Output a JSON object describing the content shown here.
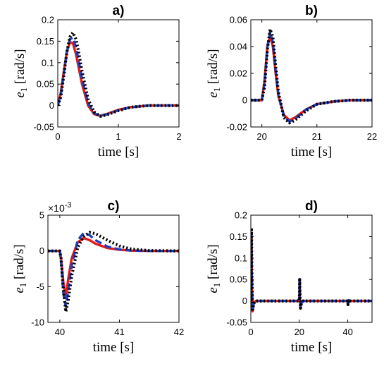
{
  "chart_data": [
    {
      "id": "a",
      "type": "line",
      "title": "a)",
      "xlabel": "time [s]",
      "ylabel": "e1 [rad/s]",
      "xlim": [
        0,
        2
      ],
      "ylim": [
        -0.05,
        0.2
      ],
      "xticks": [
        0,
        1,
        2
      ],
      "yticks": [
        -0.05,
        0,
        0.05,
        0.1,
        0.15,
        0.2
      ],
      "ytick_labels": [
        "-0.05",
        "0",
        "0.05",
        "0.1",
        "0.15",
        "0.2"
      ],
      "exponent": "",
      "series": [
        {
          "color": "#e41a1c",
          "dash": "solid",
          "x": [
            0,
            0.05,
            0.1,
            0.15,
            0.2,
            0.25,
            0.3,
            0.35,
            0.4,
            0.5,
            0.6,
            0.7,
            0.8,
            1.0,
            1.2,
            1.5,
            2.0
          ],
          "y": [
            0,
            0.03,
            0.08,
            0.125,
            0.148,
            0.145,
            0.12,
            0.085,
            0.05,
            0.0,
            -0.02,
            -0.024,
            -0.02,
            -0.01,
            -0.004,
            0.0,
            0.0
          ]
        },
        {
          "color": "#1f3fbf",
          "dash": "dash",
          "x": [
            0,
            0.05,
            0.1,
            0.15,
            0.2,
            0.25,
            0.3,
            0.35,
            0.4,
            0.5,
            0.6,
            0.7,
            0.8,
            1.0,
            1.2,
            1.5,
            2.0
          ],
          "y": [
            0,
            0.025,
            0.075,
            0.125,
            0.155,
            0.158,
            0.135,
            0.1,
            0.062,
            0.005,
            -0.018,
            -0.024,
            -0.021,
            -0.011,
            -0.004,
            0.0,
            0.0
          ]
        },
        {
          "color": "#000000",
          "dash": "dot",
          "x": [
            0,
            0.05,
            0.1,
            0.15,
            0.2,
            0.25,
            0.3,
            0.35,
            0.4,
            0.5,
            0.6,
            0.7,
            0.8,
            1.0,
            1.2,
            1.5,
            2.0
          ],
          "y": [
            0,
            0.02,
            0.07,
            0.125,
            0.16,
            0.17,
            0.155,
            0.12,
            0.08,
            0.015,
            -0.015,
            -0.025,
            -0.022,
            -0.012,
            -0.004,
            0.0,
            0.0
          ]
        }
      ]
    },
    {
      "id": "b",
      "type": "line",
      "title": "b)",
      "xlabel": "time [s]",
      "ylabel": "e1 [rad/s]",
      "xlim": [
        19.8,
        22
      ],
      "ylim": [
        -0.02,
        0.06
      ],
      "xticks": [
        20,
        21,
        22
      ],
      "yticks": [
        -0.02,
        0,
        0.02,
        0.04,
        0.06
      ],
      "ytick_labels": [
        "-0.02",
        "0",
        "0.02",
        "0.04",
        "0.06"
      ],
      "exponent": "",
      "series": [
        {
          "color": "#e41a1c",
          "dash": "solid",
          "x": [
            19.8,
            20.0,
            20.05,
            20.1,
            20.15,
            20.2,
            20.25,
            20.3,
            20.4,
            20.5,
            20.6,
            20.8,
            21.0,
            21.3,
            21.6,
            22.0
          ],
          "y": [
            0,
            0,
            0.015,
            0.04,
            0.048,
            0.04,
            0.02,
            0.003,
            -0.011,
            -0.015,
            -0.013,
            -0.007,
            -0.003,
            -0.001,
            0,
            0
          ]
        },
        {
          "color": "#1f3fbf",
          "dash": "dash",
          "x": [
            19.8,
            20.0,
            20.05,
            20.1,
            20.15,
            20.2,
            20.25,
            20.3,
            20.4,
            20.5,
            20.6,
            20.8,
            21.0,
            21.3,
            21.6,
            22.0
          ],
          "y": [
            0,
            0,
            0.013,
            0.04,
            0.051,
            0.043,
            0.022,
            0.004,
            -0.012,
            -0.016,
            -0.014,
            -0.007,
            -0.003,
            -0.001,
            0,
            0
          ]
        },
        {
          "color": "#000000",
          "dash": "dot",
          "x": [
            19.8,
            20.0,
            20.05,
            20.1,
            20.15,
            20.2,
            20.25,
            20.3,
            20.4,
            20.5,
            20.6,
            20.8,
            21.0,
            21.3,
            21.6,
            22.0
          ],
          "y": [
            0,
            0,
            0.01,
            0.038,
            0.053,
            0.047,
            0.026,
            0.006,
            -0.013,
            -0.017,
            -0.015,
            -0.008,
            -0.003,
            -0.001,
            0,
            0
          ]
        }
      ]
    },
    {
      "id": "c",
      "type": "line",
      "title": "c)",
      "xlabel": "time [s]",
      "ylabel": "e1 [rad/s]",
      "xlim": [
        39.8,
        42
      ],
      "ylim": [
        -10,
        5
      ],
      "xticks": [
        40,
        41,
        42
      ],
      "yticks": [
        -10,
        -5,
        0,
        5
      ],
      "ytick_labels": [
        "-10",
        "-5",
        "0",
        "5"
      ],
      "exponent": "×10",
      "exponent_power": "-3",
      "series": [
        {
          "color": "#e41a1c",
          "dash": "solid",
          "x": [
            39.8,
            40.0,
            40.02,
            40.06,
            40.1,
            40.14,
            40.2,
            40.3,
            40.4,
            40.5,
            40.6,
            40.8,
            41.0,
            41.2,
            41.5,
            42.0
          ],
          "y": [
            0,
            0,
            -1.0,
            -4.5,
            -6.5,
            -4.0,
            -1.0,
            1.2,
            1.8,
            1.5,
            1.0,
            0.4,
            0.15,
            0.05,
            0,
            0
          ]
        },
        {
          "color": "#1f3fbf",
          "dash": "dash",
          "x": [
            39.8,
            40.0,
            40.02,
            40.06,
            40.1,
            40.14,
            40.2,
            40.3,
            40.4,
            40.5,
            40.6,
            40.8,
            41.0,
            41.2,
            41.5,
            42.0
          ],
          "y": [
            0,
            0,
            -1.5,
            -6.0,
            -7.8,
            -5.5,
            -2.0,
            1.5,
            2.5,
            2.2,
            1.5,
            0.6,
            0.2,
            0.05,
            0,
            0
          ]
        },
        {
          "color": "#000000",
          "dash": "dot",
          "x": [
            39.8,
            40.0,
            40.02,
            40.06,
            40.1,
            40.14,
            40.2,
            40.3,
            40.4,
            40.5,
            40.6,
            40.8,
            41.0,
            41.2,
            41.5,
            42.0
          ],
          "y": [
            0,
            0,
            -1.0,
            -5.5,
            -8.5,
            -7.0,
            -3.5,
            0.5,
            2.0,
            2.6,
            2.4,
            1.5,
            0.7,
            0.25,
            0.05,
            0
          ]
        }
      ]
    },
    {
      "id": "d",
      "type": "line",
      "title": "d)",
      "xlabel": "time [s]",
      "ylabel": "e1 [rad/s]",
      "xlim": [
        0,
        50
      ],
      "ylim": [
        -0.05,
        0.2
      ],
      "xticks": [
        0,
        20,
        40
      ],
      "yticks": [
        -0.05,
        0,
        0.05,
        0.1,
        0.15,
        0.2
      ],
      "ytick_labels": [
        "-0.05",
        "0",
        "0.05",
        "0.1",
        "0.15",
        "0.2"
      ],
      "exponent": "",
      "series": [
        {
          "color": "#e41a1c",
          "dash": "solid",
          "x": [
            0,
            0.1,
            0.25,
            0.4,
            0.7,
            1.2,
            2,
            19.95,
            20.05,
            20.15,
            20.3,
            20.5,
            20.8,
            21.5,
            39.95,
            40.05,
            40.1,
            40.3,
            40.6,
            41,
            50
          ],
          "y": [
            0,
            0.1,
            0.148,
            0.05,
            -0.024,
            -0.005,
            0,
            0,
            0.015,
            0.048,
            0.003,
            -0.015,
            -0.006,
            0,
            0,
            -0.004,
            -0.0065,
            0.0012,
            0.001,
            0,
            0
          ]
        },
        {
          "color": "#1f3fbf",
          "dash": "dash",
          "x": [
            0,
            0.1,
            0.25,
            0.4,
            0.7,
            1.2,
            2,
            19.95,
            20.05,
            20.15,
            20.3,
            20.5,
            20.8,
            21.5,
            39.95,
            40.05,
            40.1,
            40.3,
            40.6,
            41,
            50
          ],
          "y": [
            0,
            0.1,
            0.158,
            0.062,
            -0.024,
            -0.005,
            0,
            0,
            0.013,
            0.051,
            0.004,
            -0.016,
            -0.006,
            0,
            0,
            -0.005,
            -0.0078,
            0.0015,
            0.0015,
            0,
            0
          ]
        },
        {
          "color": "#000000",
          "dash": "dot",
          "x": [
            0,
            0.1,
            0.25,
            0.4,
            0.7,
            1.2,
            2,
            19.95,
            20.05,
            20.15,
            20.3,
            20.5,
            20.8,
            21.5,
            39.95,
            40.05,
            40.1,
            40.3,
            40.6,
            41,
            50
          ],
          "y": [
            0,
            0.1,
            0.17,
            0.08,
            -0.025,
            -0.006,
            0,
            0,
            0.01,
            0.053,
            0.006,
            -0.017,
            -0.007,
            0,
            0,
            -0.005,
            -0.0085,
            0.0005,
            0.0024,
            0,
            0
          ]
        }
      ]
    }
  ]
}
